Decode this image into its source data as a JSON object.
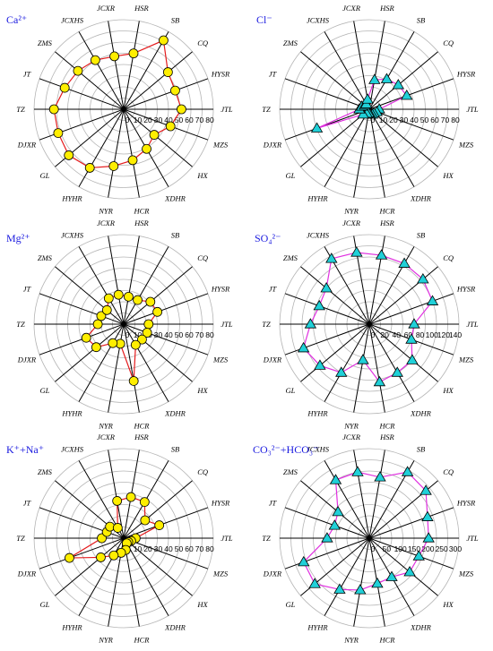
{
  "chart_data": [
    {
      "type": "radar",
      "title": "Ca²⁺",
      "axes": [
        "SB",
        "CQ",
        "HYSR",
        "JTL",
        "MZS",
        "HX",
        "XDHR",
        "HCR",
        "NYR",
        "HYHR",
        "GL",
        "DJXR",
        "TZ",
        "JT",
        "ZMS",
        "JCXHS",
        "JCXR",
        "HSR"
      ],
      "ticks": [
        "0",
        "10",
        "20",
        "30",
        "40",
        "50",
        "60",
        "70",
        "80"
      ],
      "rmax": 90,
      "values": [
        80,
        58,
        55,
        58,
        50,
        40,
        46,
        52,
        58,
        68,
        72,
        70,
        70,
        63,
        60,
        57,
        54,
        57
      ],
      "line_color": "#e41a1c",
      "marker": "circle",
      "marker_color": "#ffee00"
    },
    {
      "type": "radar",
      "title": "Cl⁻",
      "axes": [
        "SB",
        "CQ",
        "HYSR",
        "JTL",
        "MZS",
        "HX",
        "XDHR",
        "HCR",
        "NYR",
        "HYHR",
        "GL",
        "DJXR",
        "TZ",
        "JT",
        "ZMS",
        "JCXHS",
        "JCXR",
        "HSR"
      ],
      "ticks": [
        "0",
        "10",
        "20",
        "30",
        "40",
        "50",
        "60",
        "70",
        "80"
      ],
      "rmax": 90,
      "values": [
        35,
        38,
        40,
        10,
        8,
        6,
        6,
        5,
        4,
        5,
        8,
        56,
        10,
        8,
        6,
        6,
        10,
        30
      ],
      "line_color": "#e030e0",
      "marker": "triangle",
      "marker_color": "#20d0d8"
    },
    {
      "type": "radar",
      "title": "Mg²⁺",
      "axes": [
        "SB",
        "CQ",
        "HYSR",
        "JTL",
        "MZS",
        "HX",
        "XDHR",
        "HCR",
        "NYR",
        "HYHR",
        "GL",
        "DJXR",
        "TZ",
        "JT",
        "ZMS",
        "JCXHS",
        "JCXR",
        "HSR"
      ],
      "ticks": [
        "0",
        "10",
        "20",
        "30",
        "40",
        "50",
        "60",
        "70",
        "80"
      ],
      "rmax": 90,
      "values": [
        28,
        35,
        36,
        25,
        25,
        24,
        24,
        58,
        20,
        22,
        36,
        40,
        26,
        24,
        22,
        30,
        30,
        28
      ],
      "line_color": "#e41a1c",
      "marker": "circle",
      "marker_color": "#ffee00"
    },
    {
      "type": "radar",
      "title": "SO₄²⁻",
      "axes": [
        "SB",
        "CQ",
        "HYSR",
        "JTL",
        "MZS",
        "HX",
        "XDHR",
        "HCR",
        "NYR",
        "HYHR",
        "GL",
        "DJXR",
        "TZ",
        "JT",
        "ZMS",
        "JCXHS",
        "JCXR",
        "HSR"
      ],
      "ticks": [
        "0",
        "20",
        "40",
        "60",
        "80",
        "100",
        "120",
        "140"
      ],
      "rmax": 160,
      "values": [
        125,
        125,
        120,
        80,
        80,
        100,
        100,
        105,
        65,
        100,
        115,
        125,
        105,
        95,
        100,
        135,
        130,
        125
      ],
      "line_color": "#e030e0",
      "marker": "triangle",
      "marker_color": "#20d0d8"
    },
    {
      "type": "radar",
      "title": "K⁺+Na⁺",
      "axes": [
        "SB",
        "CQ",
        "HYSR",
        "JTL",
        "MZS",
        "HX",
        "XDHR",
        "HCR",
        "NYR",
        "HYHR",
        "GL",
        "DJXR",
        "TZ",
        "JT",
        "ZMS",
        "JCXHS",
        "JCXR",
        "HSR"
      ],
      "ticks": [
        "0",
        "10",
        "20",
        "30",
        "40",
        "50",
        "60",
        "70",
        "80"
      ],
      "rmax": 90,
      "values": [
        42,
        28,
        38,
        12,
        8,
        6,
        6,
        12,
        15,
        20,
        30,
        58,
        22,
        18,
        18,
        12,
        38,
        42
      ],
      "line_color": "#e41a1c",
      "marker": "circle",
      "marker_color": "#ffee00"
    },
    {
      "type": "radar",
      "title": "CO₃²⁻+HCO₃⁻",
      "axes": [
        "SB",
        "CQ",
        "HYSR",
        "JTL",
        "MZS",
        "HX",
        "XDHR",
        "HCR",
        "NYR",
        "HYHR",
        "GL",
        "DJXR",
        "TZ",
        "JT",
        "ZMS",
        "JCXHS",
        "JCXR",
        "HSR"
      ],
      "ticks": [
        "0",
        "50",
        "100",
        "150",
        "200",
        "250",
        "300"
      ],
      "rmax": 340,
      "values": [
        290,
        280,
        235,
        225,
        200,
        200,
        170,
        175,
        200,
        225,
        270,
        265,
        160,
        140,
        155,
        255,
        255,
        235
      ],
      "line_color": "#e030e0",
      "marker": "triangle",
      "marker_color": "#20d0d8"
    }
  ]
}
